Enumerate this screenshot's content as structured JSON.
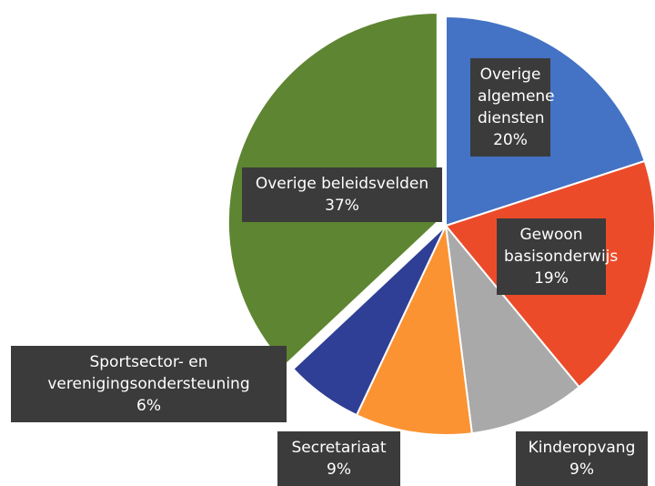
{
  "chart_data": {
    "type": "pie",
    "categories": [
      "Overige algemene diensten",
      "Gewoon basisonderwijs",
      "Kinderopvang",
      "Secretariaat",
      "Sportsector- en verenigingsondersteuning",
      "Overige beleidsvelden"
    ],
    "values": [
      20,
      19,
      9,
      9,
      6,
      37
    ],
    "value_labels": [
      "20%",
      "19%",
      "9%",
      "9%",
      "6%",
      "37%"
    ],
    "colors": [
      "#4472c4",
      "#ec4b2a",
      "#a9a9a9",
      "#fb9333",
      "#2f3f95",
      "#5e8531"
    ]
  }
}
